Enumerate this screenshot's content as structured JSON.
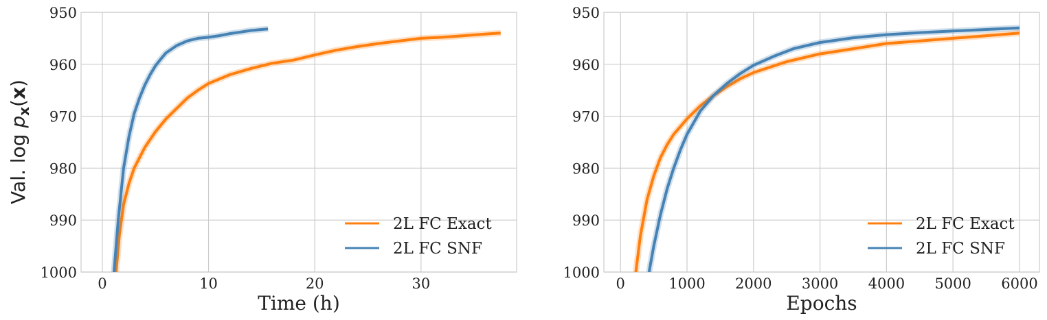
{
  "ylabel_prefix": "Val. log ",
  "ylabel_var": "p",
  "ylabel_sub": "x",
  "ylabel_arg_open": "(",
  "ylabel_arg": "x",
  "ylabel_arg_close": ")",
  "colors": {
    "exact": "#ff7f0e",
    "snf": "#4682b4",
    "grid": "#cccccc"
  },
  "chart_data": [
    {
      "type": "line",
      "xlabel": "Time (h)",
      "ylabel": "Val. log p_x(x)",
      "xlim": [
        -2,
        39
      ],
      "ylim": [
        1000,
        950
      ],
      "y_inverted": true,
      "xticks": [
        0,
        10,
        20,
        30
      ],
      "yticks": [
        950,
        960,
        970,
        980,
        990,
        1000
      ],
      "grid": true,
      "legend_position": "lower-right",
      "series": [
        {
          "name": "2L FC Exact",
          "color": "#ff7f0e",
          "x": [
            1.3,
            1.6,
            2,
            2.5,
            3,
            4,
            5,
            6,
            7,
            8,
            9,
            10,
            12,
            14,
            16,
            18,
            20,
            22,
            24,
            26,
            28,
            30,
            32,
            34,
            36,
            37.5
          ],
          "y": [
            1000,
            993,
            987,
            983,
            980,
            976,
            973,
            970.5,
            968.5,
            966.5,
            965,
            963.7,
            962,
            960.8,
            959.8,
            959.2,
            958.2,
            957.3,
            956.6,
            956,
            955.5,
            955,
            954.8,
            954.5,
            954.2,
            954
          ]
        },
        {
          "name": "2L FC SNF",
          "color": "#4682b4",
          "x": [
            1.1,
            1.5,
            2,
            2.5,
            3,
            3.5,
            4,
            4.5,
            5,
            5.5,
            6,
            7,
            8,
            9,
            10,
            11,
            12,
            13,
            14,
            15,
            15.6
          ],
          "y": [
            1000,
            990,
            980,
            974,
            969.5,
            966.5,
            964,
            962,
            960.3,
            959,
            957.8,
            956.4,
            955.5,
            955,
            954.8,
            954.5,
            954.1,
            953.8,
            953.5,
            953.3,
            953.2
          ]
        }
      ]
    },
    {
      "type": "line",
      "xlabel": "Epochs",
      "ylabel": "",
      "xlim": [
        -250,
        6300
      ],
      "ylim": [
        1000,
        950
      ],
      "y_inverted": true,
      "xticks": [
        0,
        1000,
        2000,
        3000,
        4000,
        5000,
        6000
      ],
      "yticks": [
        950,
        960,
        970,
        980,
        990,
        1000
      ],
      "grid": true,
      "legend_position": "lower-right",
      "series": [
        {
          "name": "2L FC Exact",
          "color": "#ff7f0e",
          "x": [
            230,
            300,
            400,
            500,
            600,
            700,
            800,
            900,
            1000,
            1200,
            1400,
            1600,
            1800,
            2000,
            2500,
            3000,
            3500,
            4000,
            4500,
            5000,
            5500,
            6000
          ],
          "y": [
            1000,
            993,
            986,
            981.5,
            978,
            975.5,
            973.5,
            972,
            970.5,
            968,
            966,
            964.3,
            962.8,
            961.6,
            959.5,
            958,
            957,
            956,
            955.5,
            955,
            954.5,
            954
          ]
        },
        {
          "name": "2L FC SNF",
          "color": "#4682b4",
          "x": [
            430,
            500,
            600,
            700,
            800,
            900,
            1000,
            1200,
            1400,
            1600,
            1800,
            2000,
            2300,
            2600,
            3000,
            3500,
            4000,
            4500,
            5000,
            5500,
            6000
          ],
          "y": [
            1000,
            995,
            989,
            984,
            980,
            976.5,
            973.5,
            969,
            966,
            963.7,
            961.8,
            960.2,
            958.5,
            957,
            955.8,
            954.9,
            954.3,
            953.9,
            953.6,
            953.3,
            953
          ]
        }
      ]
    }
  ]
}
